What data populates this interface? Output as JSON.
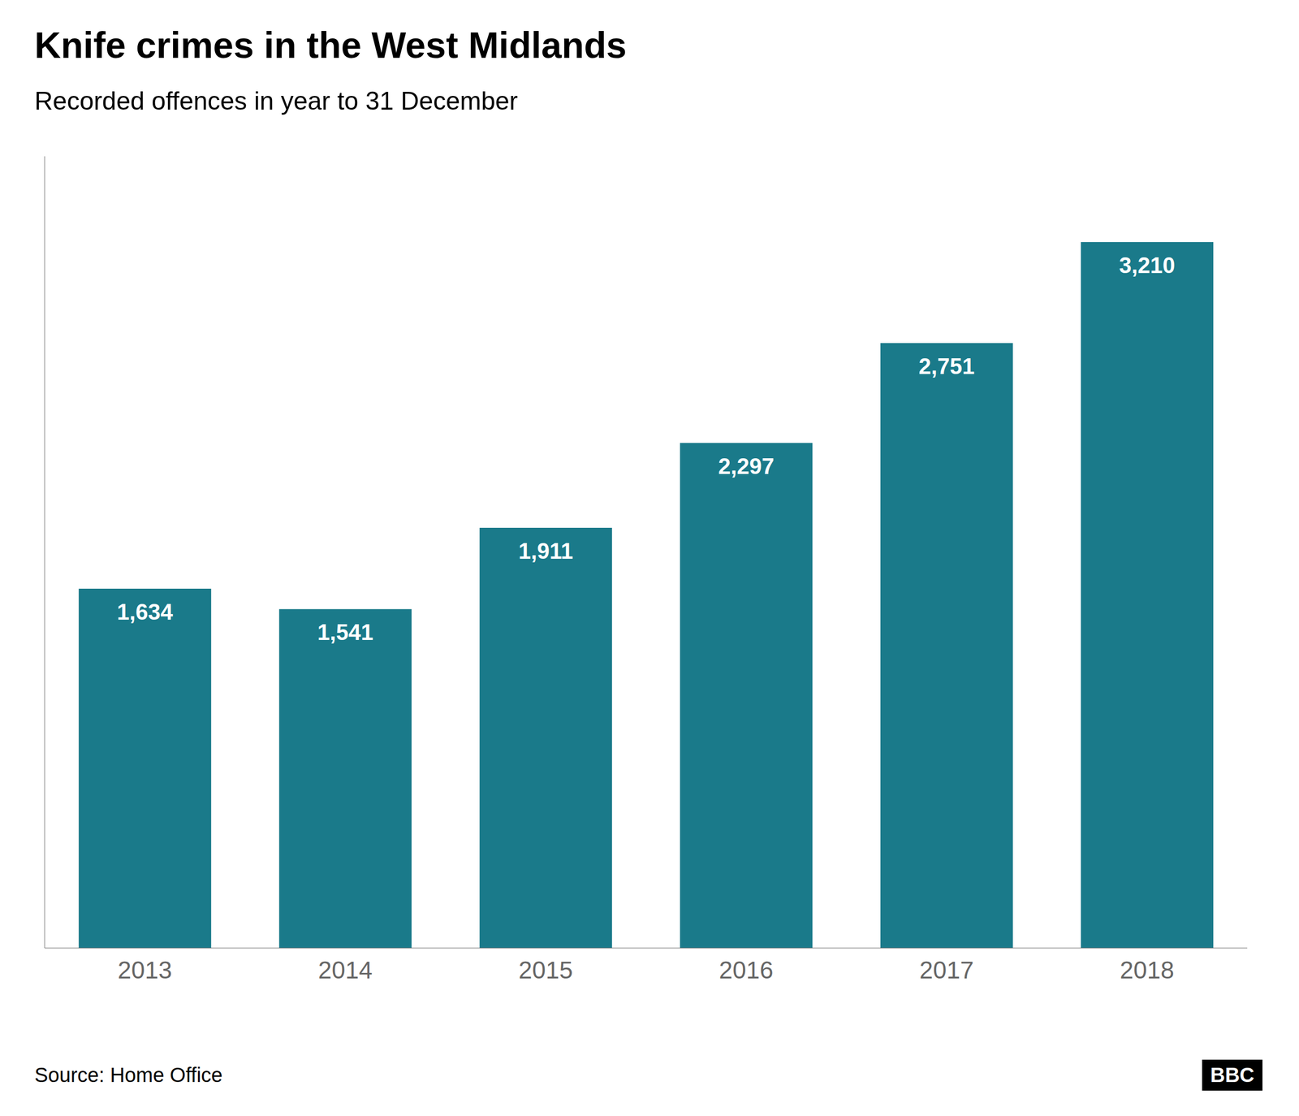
{
  "chart_data": {
    "type": "bar",
    "title": "Knife crimes in the West Midlands",
    "subtitle": "Recorded offences in year to 31 December",
    "annotations": [
      "Source: Home Office",
      "BBC"
    ],
    "categories": [
      "2013",
      "2014",
      "2015",
      "2016",
      "2017",
      "2018"
    ],
    "values": [
      1634,
      1541,
      1911,
      2297,
      2751,
      3210
    ],
    "value_labels": [
      "1,634",
      "1,541",
      "1,911",
      "2,297",
      "2,751",
      "3,210"
    ],
    "data_labels": true,
    "color": "#1a7a8a",
    "ylim": [
      0,
      3600
    ],
    "tick_labels": "x",
    "grid": false
  }
}
